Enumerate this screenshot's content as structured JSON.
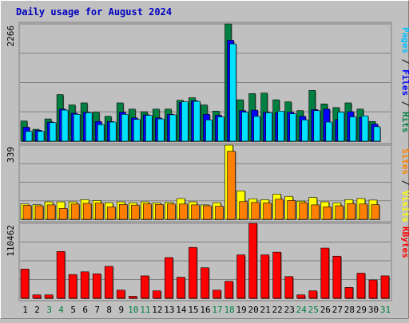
{
  "chart_data": {
    "type": "bar",
    "title": "Daily usage for August 2024",
    "categories": [
      "1",
      "2",
      "3",
      "4",
      "5",
      "6",
      "7",
      "8",
      "9",
      "10",
      "11",
      "12",
      "13",
      "14",
      "15",
      "16",
      "17",
      "18",
      "19",
      "20",
      "21",
      "22",
      "23",
      "24",
      "25",
      "26",
      "27",
      "28",
      "29",
      "30",
      "31"
    ],
    "weekend_categories": [
      "3",
      "4",
      "10",
      "11",
      "17",
      "18",
      "24",
      "25",
      "31"
    ],
    "panels": [
      {
        "id": "hits",
        "ylim": [
          0,
          2266
        ],
        "max_label": "2266",
        "side_label": [
          "Pages",
          "Files",
          "Hits"
        ],
        "series": [
          {
            "name": "Hits",
            "color": "#008040",
            "values": [
              390,
              230,
              430,
              900,
              700,
              740,
              560,
              480,
              740,
              620,
              570,
              620,
              620,
              790,
              840,
              700,
              580,
              2266,
              800,
              920,
              930,
              800,
              760,
              590,
              980,
              720,
              650,
              740,
              620,
              380,
              0
            ]
          },
          {
            "name": "Files",
            "color": "#0000ff",
            "values": [
              270,
              210,
              370,
              620,
              540,
              560,
              380,
              380,
              560,
              450,
              510,
              450,
              520,
              750,
              780,
              520,
              500,
              1950,
              590,
              600,
              560,
              550,
              560,
              480,
              610,
              620,
              420,
              570,
              460,
              330,
              0
            ]
          },
          {
            "name": "Pages",
            "color": "#00e0ff",
            "values": [
              190,
              190,
              360,
              600,
              520,
              550,
              320,
              370,
              520,
              420,
              500,
              430,
              510,
              760,
              770,
              410,
              470,
              1880,
              560,
              480,
              550,
              580,
              530,
              410,
              590,
              370,
              560,
              470,
              490,
              280,
              0
            ]
          }
        ]
      },
      {
        "id": "visits",
        "ylim": [
          0,
          339
        ],
        "max_label": "339",
        "side_label": [
          "Sites",
          "Visits"
        ],
        "series": [
          {
            "name": "Visits",
            "color": "#ffff00",
            "values": [
              70,
              67,
              80,
              80,
              80,
              90,
              86,
              76,
              80,
              76,
              80,
              75,
              77,
              95,
              80,
              66,
              76,
              339,
              130,
              94,
              90,
              115,
              105,
              83,
              100,
              80,
              75,
              90,
              95,
              88,
              0
            ]
          },
          {
            "name": "Sites",
            "color": "#ff8000",
            "values": [
              64,
              62,
              66,
              50,
              70,
              73,
              74,
              57,
              68,
              65,
              71,
              68,
              70,
              70,
              66,
              62,
              60,
              311,
              81,
              77,
              75,
              92,
              86,
              76,
              66,
              57,
              62,
              72,
              70,
              67,
              0
            ]
          }
        ]
      },
      {
        "id": "kbytes",
        "ylim": [
          0,
          110462
        ],
        "max_label": "110462",
        "side_label": [
          "KBytes"
        ],
        "series": [
          {
            "name": "KBytes",
            "color": "#ff0000",
            "values": [
              43000,
              5000,
              5000,
              69000,
              35000,
              39000,
              36000,
              47000,
              12000,
              3000,
              33000,
              11000,
              60000,
              31000,
              75000,
              45000,
              12000,
              25000,
              64000,
              110462,
              64000,
              68000,
              32000,
              5000,
              11000,
              74000,
              62000,
              16000,
              37000,
              27000,
              33000
            ]
          }
        ]
      }
    ]
  }
}
